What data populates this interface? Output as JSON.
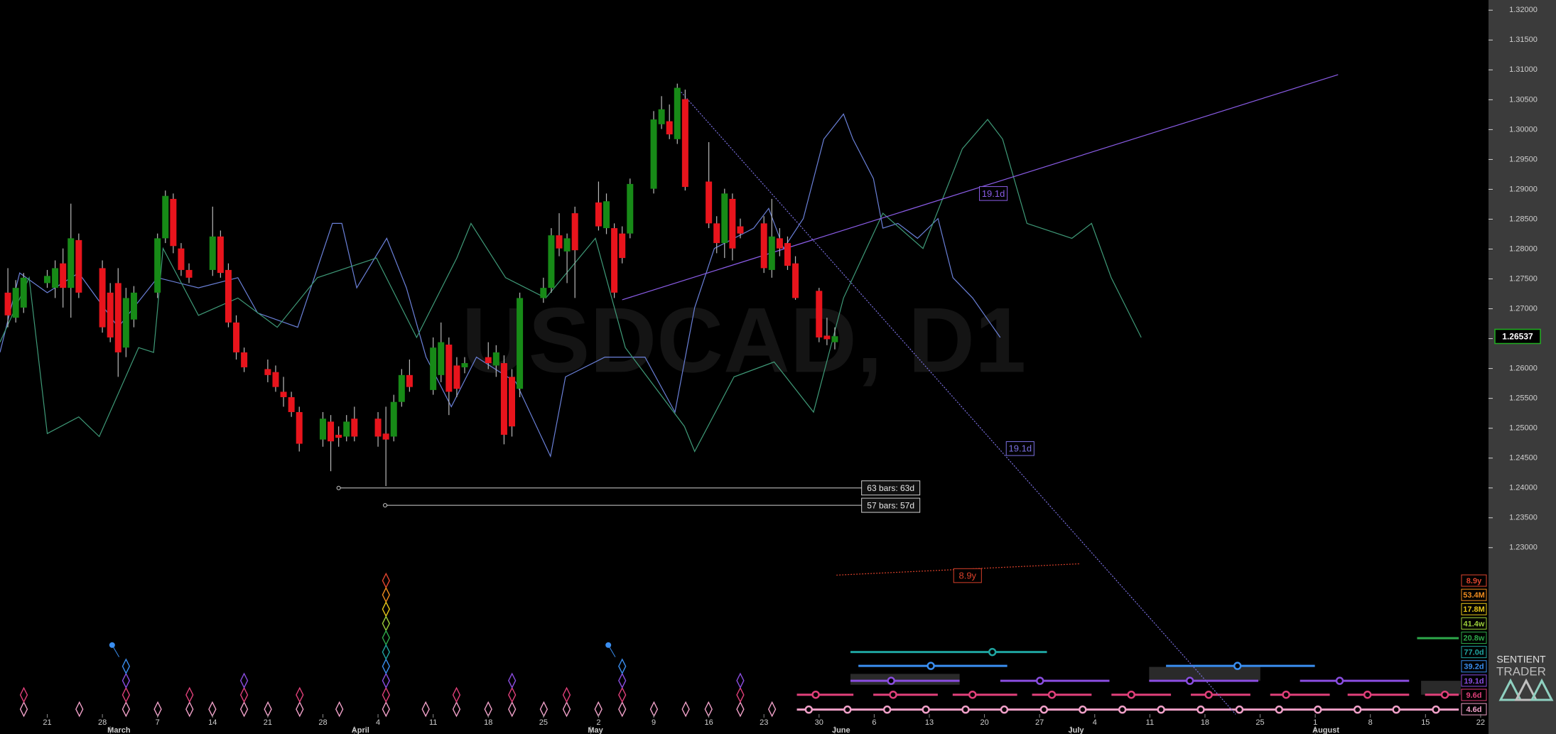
{
  "chart_data": {
    "type": "candlestick",
    "title": "USDCAD, D1",
    "x": [
      1,
      2,
      3,
      6,
      7,
      8,
      9,
      10,
      13,
      14,
      15,
      16,
      17,
      20,
      21,
      22,
      23,
      24,
      27,
      28,
      29,
      30,
      31,
      34,
      35,
      36,
      37,
      38,
      41,
      42,
      43,
      44,
      45,
      48,
      49,
      50,
      51,
      52,
      55,
      56,
      57,
      58,
      59,
      62,
      63,
      64,
      65,
      66,
      69,
      70,
      71,
      72,
      73,
      76,
      77,
      78,
      79,
      80,
      83,
      84,
      85,
      86,
      87,
      90,
      91,
      92,
      93,
      94,
      97,
      98,
      99,
      100,
      101,
      104,
      105,
      106
    ],
    "open": [
      1.2727,
      1.2685,
      1.2702,
      1.2743,
      1.2735,
      1.2776,
      1.2735,
      1.2815,
      1.2768,
      1.2727,
      1.2743,
      1.2635,
      1.2682,
      1.2727,
      1.2818,
      1.2884,
      1.2801,
      1.2765,
      1.2765,
      1.2821,
      1.2765,
      1.2677,
      1.2627,
      1.2599,
      1.2594,
      1.2561,
      1.2552,
      1.2527,
      1.2481,
      1.2511,
      1.2489,
      1.2486,
      1.2516,
      1.2516,
      1.2491,
      1.2486,
      1.2544,
      1.2589,
      1.2564,
      1.2589,
      1.264,
      1.2605,
      1.2602,
      1.2619,
      1.2605,
      1.2609,
      1.2586,
      1.2566,
      1.2718,
      1.2735,
      1.2823,
      1.2796,
      1.286,
      1.2878,
      1.2835,
      1.2835,
      1.2826,
      1.2826,
      1.2901,
      1.3009,
      1.3014,
      1.2984,
      1.3051,
      1.2913,
      1.2843,
      1.281,
      1.2884,
      1.2838,
      1.2843,
      1.2765,
      1.2818,
      1.281,
      1.2776,
      1.273,
      1.2655,
      1.2644
    ],
    "high": [
      1.2768,
      1.2748,
      1.276,
      1.2765,
      1.2781,
      1.2801,
      1.2876,
      1.2826,
      1.2781,
      1.2743,
      1.2768,
      1.2735,
      1.2738,
      1.2826,
      1.2898,
      1.2893,
      1.281,
      1.2776,
      1.2871,
      1.2831,
      1.2776,
      1.2689,
      1.2635,
      1.2615,
      1.2605,
      1.2586,
      1.2561,
      1.2536,
      1.2527,
      1.2522,
      1.2503,
      1.2522,
      1.2536,
      1.2527,
      1.2536,
      1.2556,
      1.2599,
      1.2615,
      1.2652,
      1.2677,
      1.2652,
      1.2619,
      1.2619,
      1.2644,
      1.2639,
      1.2622,
      1.2599,
      1.2727,
      1.2752,
      1.2835,
      1.286,
      1.2826,
      1.2871,
      1.2913,
      1.2893,
      1.2843,
      1.2838,
      1.2918,
      1.3031,
      1.3056,
      1.3042,
      1.3077,
      1.3067,
      1.2979,
      1.2855,
      1.2901,
      1.2893,
      1.2851,
      1.2855,
      1.2884,
      1.2835,
      1.2821,
      1.2788,
      1.2735,
      1.2685,
      1.2669
    ],
    "low": [
      1.2669,
      1.2677,
      1.2693,
      1.2735,
      1.2718,
      1.2702,
      1.2685,
      1.2718,
      1.266,
      1.2644,
      1.2586,
      1.2619,
      1.2669,
      1.2718,
      1.281,
      1.2793,
      1.2755,
      1.2743,
      1.2755,
      1.2752,
      1.2669,
      1.2615,
      1.2594,
      1.2577,
      1.2561,
      1.2536,
      1.2519,
      1.2461,
      1.2469,
      1.2428,
      1.2469,
      1.2478,
      1.2478,
      1.2469,
      1.2403,
      1.2478,
      1.2536,
      1.2561,
      1.2556,
      1.2577,
      1.2522,
      1.2552,
      1.2592,
      1.2599,
      1.2586,
      1.2473,
      1.2486,
      1.2552,
      1.271,
      1.2727,
      1.2788,
      1.2743,
      1.2718,
      1.2831,
      1.2825,
      1.2718,
      1.2776,
      1.2818,
      1.2893,
      1.3001,
      1.2984,
      1.2976,
      1.2898,
      1.2835,
      1.2793,
      1.2785,
      1.2781,
      1.2818,
      1.276,
      1.2752,
      1.2788,
      1.2765,
      1.2715,
      1.2644,
      1.2639,
      1.2632
    ],
    "close": [
      1.2689,
      1.2735,
      1.2752,
      1.2755,
      1.2768,
      1.2735,
      1.2818,
      1.2727,
      1.2669,
      1.2652,
      1.2627,
      1.2718,
      1.2727,
      1.2818,
      1.2889,
      1.2805,
      1.2765,
      1.2752,
      1.2821,
      1.276,
      1.2677,
      1.2627,
      1.2602,
      1.2589,
      1.2569,
      1.2552,
      1.2527,
      1.2474,
      1.2516,
      1.2478,
      1.2484,
      1.2511,
      1.2486,
      1.2486,
      1.2481,
      1.2544,
      1.2589,
      1.2569,
      1.2635,
      1.2644,
      1.2561,
      1.2566,
      1.2609,
      1.2609,
      1.2627,
      1.2489,
      1.2503,
      1.2718,
      1.2735,
      1.2823,
      1.2801,
      1.2818,
      1.2798,
      1.2838,
      1.288,
      1.2727,
      1.2785,
      1.2909,
      1.3017,
      1.3034,
      1.2992,
      1.307,
      1.2904,
      1.2843,
      1.281,
      1.2893,
      1.2801,
      1.2826,
      1.2768,
      1.2821,
      1.2801,
      1.2772,
      1.2718,
      1.2652,
      1.2649,
      1.2654
    ],
    "up_color": "#178a17",
    "down_color": "#e8141c",
    "xlim": [
      0,
      189
    ],
    "ylim": [
      1.1988,
      1.3217
    ],
    "yticks": [
      {
        "value": 1.32,
        "label": "1.32000"
      },
      {
        "value": 1.315,
        "label": "1.31500"
      },
      {
        "value": 1.31,
        "label": "1.31000"
      },
      {
        "value": 1.305,
        "label": "1.30500"
      },
      {
        "value": 1.3,
        "label": "1.30000"
      },
      {
        "value": 1.295,
        "label": "1.29500"
      },
      {
        "value": 1.29,
        "label": "1.29000"
      },
      {
        "value": 1.285,
        "label": "1.28500"
      },
      {
        "value": 1.28,
        "label": "1.28000"
      },
      {
        "value": 1.275,
        "label": "1.27500"
      },
      {
        "value": 1.27,
        "label": "1.27000"
      },
      {
        "value": 1.265,
        "label": "1.26500"
      },
      {
        "value": 1.26,
        "label": "1.26000"
      },
      {
        "value": 1.255,
        "label": "1.25500"
      },
      {
        "value": 1.25,
        "label": "1.25000"
      },
      {
        "value": 1.245,
        "label": "1.24500"
      },
      {
        "value": 1.24,
        "label": "1.24000"
      },
      {
        "value": 1.235,
        "label": "1.23500"
      },
      {
        "value": 1.23,
        "label": "1.23000"
      }
    ],
    "xticks": [
      {
        "value": 6,
        "label": "21"
      },
      {
        "value": 13,
        "label": "28"
      },
      {
        "value": 20,
        "label": "7"
      },
      {
        "value": 27,
        "label": "14"
      },
      {
        "value": 34,
        "label": "21"
      },
      {
        "value": 41,
        "label": "28"
      },
      {
        "value": 48,
        "label": "4"
      },
      {
        "value": 55,
        "label": "11"
      },
      {
        "value": 62,
        "label": "18"
      },
      {
        "value": 69,
        "label": "25"
      },
      {
        "value": 76,
        "label": "2"
      },
      {
        "value": 83,
        "label": "9"
      },
      {
        "value": 90,
        "label": "16"
      },
      {
        "value": 97,
        "label": "23"
      },
      {
        "value": 104,
        "label": "30"
      },
      {
        "value": 111,
        "label": "6"
      },
      {
        "value": 118,
        "label": "13"
      },
      {
        "value": 125,
        "label": "20"
      },
      {
        "value": 132,
        "label": "27"
      },
      {
        "value": 139,
        "label": "4"
      },
      {
        "value": 146,
        "label": "11"
      },
      {
        "value": 153,
        "label": "18"
      },
      {
        "value": 160,
        "label": "25"
      },
      {
        "value": 167,
        "label": "1"
      },
      {
        "value": 174,
        "label": "8"
      },
      {
        "value": 181,
        "label": "15"
      },
      {
        "value": 188,
        "label": "22"
      }
    ],
    "month_ticks": [
      {
        "value": 14,
        "label": "March"
      },
      {
        "value": 45,
        "label": "April"
      },
      {
        "value": 75,
        "label": "May"
      },
      {
        "value": 106,
        "label": "June"
      },
      {
        "value": 136,
        "label": "July"
      },
      {
        "value": 167,
        "label": "August"
      }
    ],
    "last_price": {
      "value": 1.26537,
      "label": "1.26537"
    },
    "overlays": [
      {
        "color": "#6a80d8",
        "x": [
          0,
          2.5,
          6,
          10,
          15,
          20,
          25.2,
          30.2,
          32.7,
          37.8,
          42.2,
          43.4,
          45.3,
          49.1,
          51.6,
          54.1,
          57.3,
          60.5,
          65.5,
          69.9,
          71.8,
          76.8,
          81.9,
          85.7,
          88.2,
          90.7,
          95.7,
          97.6,
          99.5,
          102,
          104.6,
          107.1,
          108.3,
          110.9,
          112.1,
          114,
          116.5,
          119.1,
          121,
          123.5,
          127
        ],
        "values": [
          1.2627,
          1.276,
          1.2727,
          1.276,
          1.2669,
          1.2752,
          1.2735,
          1.2752,
          1.2693,
          1.2669,
          1.2843,
          1.2843,
          1.2735,
          1.2818,
          1.2735,
          1.2619,
          1.2536,
          1.2619,
          1.2577,
          1.2453,
          1.2586,
          1.2619,
          1.2619,
          1.2527,
          1.2702,
          1.2801,
          1.2835,
          1.2868,
          1.2801,
          1.2851,
          1.2984,
          1.3026,
          1.2984,
          1.2918,
          1.2835,
          1.2843,
          1.2818,
          1.2851,
          1.2752,
          1.2718,
          1.2652
        ]
      },
      {
        "color": "#3f9a78",
        "x": [
          0,
          3.7,
          6,
          10,
          12.6,
          17.6,
          19.5,
          20.7,
          25.2,
          30.2,
          35.2,
          40.3,
          47.8,
          52.9,
          58,
          59.8,
          64.2,
          69.3,
          75.6,
          79.4,
          86.9,
          88.2,
          93.2,
          98.3,
          103.3,
          107.1,
          112.1,
          117.2,
          122.2,
          125.4,
          127.3,
          130.4,
          136.1,
          138.6,
          141.1,
          144.9
        ],
        "values": [
          1.2644,
          1.2752,
          1.2491,
          1.2519,
          1.2486,
          1.2635,
          1.2627,
          1.2801,
          1.2689,
          1.2718,
          1.2669,
          1.2752,
          1.2785,
          1.2652,
          1.2785,
          1.2843,
          1.2752,
          1.2718,
          1.2818,
          1.2635,
          1.2503,
          1.2461,
          1.2586,
          1.2611,
          1.2527,
          1.2718,
          1.286,
          1.2801,
          1.2968,
          1.3017,
          1.2984,
          1.2843,
          1.2818,
          1.2843,
          1.2752,
          1.2652
        ]
      }
    ],
    "trendlines": [
      {
        "label": "19.1d",
        "color": "#8a5ce6",
        "dash": false,
        "x": [
          79,
          169.9
        ],
        "values": [
          1.2715,
          1.3092
        ]
      },
      {
        "label": "19.1d",
        "color": "#7a70e0",
        "dash": true,
        "x": [
          86,
          156.9
        ],
        "values": [
          1.307,
          1.2021
        ]
      },
      {
        "label": "8.9y",
        "color": "#d8402a",
        "dash": true,
        "x": [
          106.2,
          137.1
        ],
        "values": [
          1.2254,
          1.2273
        ]
      }
    ],
    "measurements": [
      {
        "label": "63 bars: 63d",
        "x": [
          43,
          109.4
        ],
        "value": 1.24
      },
      {
        "label": "57 bars: 57d",
        "x": [
          48.9,
          109.4
        ],
        "value": 1.2371
      }
    ],
    "cycles": [
      {
        "label": "8.9y",
        "color": "#e0452e"
      },
      {
        "label": "53.4M",
        "color": "#f08c1e"
      },
      {
        "label": "17.8M",
        "color": "#e6c619"
      },
      {
        "label": "41.4w",
        "color": "#9ccf3a"
      },
      {
        "label": "20.8w",
        "color": "#2ea84a"
      },
      {
        "label": "77.0d",
        "color": "#1fa4a0"
      },
      {
        "label": "39.2d",
        "color": "#3a8ef0"
      },
      {
        "label": "19.1d",
        "color": "#8a4de0"
      },
      {
        "label": "9.6d",
        "color": "#e0407a"
      },
      {
        "label": "4.6d",
        "color": "#f0a0c8"
      }
    ],
    "brand": "SENTIENT",
    "brand_sub": "TRADER"
  }
}
